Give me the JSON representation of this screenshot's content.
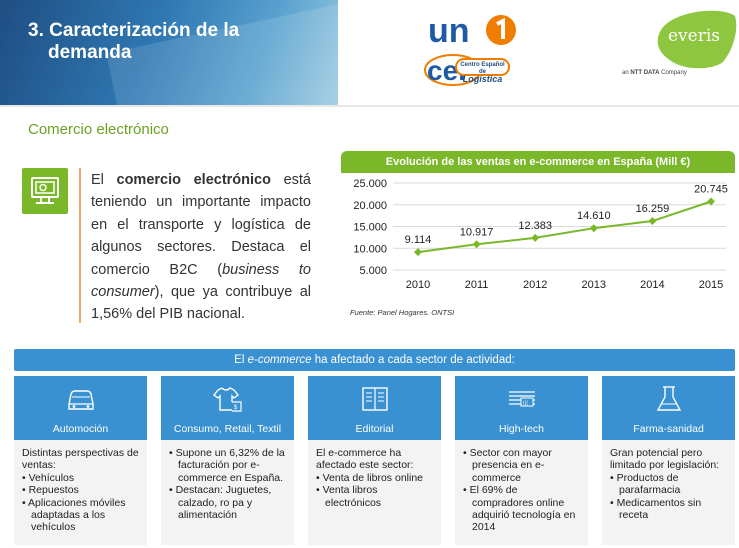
{
  "header": {
    "title_line1": "3. Caracterización de la",
    "title_line2": "demanda",
    "logo_uno_text": "un",
    "logo_cel_text": "cel",
    "logo_cel_small": "Centro Español de",
    "logo_cel_big": "Logística",
    "everis_brand": "everis",
    "everis_tagline_prefix": "an",
    "everis_tagline_bold": "NTT DATA",
    "everis_tagline_suffix": "Company"
  },
  "section": {
    "title": "Comercio electrónico"
  },
  "intro": {
    "part1": "El ",
    "bold": "comercio electrónico",
    "part2": " está teniendo un importante impacto en el transporte y logística de algunos sectores. Destaca el comercio B2C (",
    "italic": "business to consumer",
    "part3": "), que ya contribuye al 1,56% del PIB nacional."
  },
  "chart_data": {
    "type": "line",
    "title": "Evolución de las ventas en e-commerce en España (Mill €)",
    "categories": [
      "2010",
      "2011",
      "2012",
      "2013",
      "2014",
      "2015"
    ],
    "values": [
      9114,
      10917,
      12383,
      14610,
      16259,
      20745
    ],
    "value_labels": [
      "9.114",
      "10.917",
      "12.383",
      "14.610",
      "16.259",
      "20.745"
    ],
    "yticks": [
      5000,
      10000,
      15000,
      20000,
      25000
    ],
    "ytick_labels": [
      "5.000",
      "10.000",
      "15.000",
      "20.000",
      "25.000"
    ],
    "ylim": [
      5000,
      25000
    ],
    "xlabel": "",
    "ylabel": "",
    "color": "#7ab829",
    "source": "Fuente: Panel Hogares. ONTSI"
  },
  "sectors": {
    "banner_prefix": "El ",
    "banner_italic": "e-commerce",
    "banner_suffix": " ha afectado a cada sector de actividad:",
    "items": [
      {
        "label": "Automoción",
        "icon": "car-icon",
        "lines": [
          {
            "text": "Distintas perspectivas de ventas:",
            "bullet": false
          },
          {
            "text": "• Vehículos",
            "bullet": true
          },
          {
            "text": "• Repuestos",
            "bullet": true
          },
          {
            "text": "• Aplicaciones móviles adaptadas a los vehículos",
            "bullet": true
          }
        ]
      },
      {
        "label": "Consumo, Retail, Textil",
        "icon": "tshirt-icon",
        "lines": [
          {
            "text": "• Supone un 6,32% de la facturación por e-commerce en España.",
            "bullet": true
          },
          {
            "text": "• Destacan: Juguetes, calzado, ro pa y alimentación",
            "bullet": true
          }
        ]
      },
      {
        "label": "Editorial",
        "icon": "book-icon",
        "lines": [
          {
            "text": "El e-commerce ha afectado este sector:",
            "bullet": false
          },
          {
            "text": "• Venta de libros online",
            "bullet": true
          },
          {
            "text": "• Venta libros electrónicos",
            "bullet": true
          }
        ]
      },
      {
        "label": "High-tech",
        "icon": "keyboard-icon",
        "lines": [
          {
            "text": "• Sector con mayor presencia en e-commerce",
            "bullet": true
          },
          {
            "text": "• El 69% de compradores online adquirió tecnología en 2014",
            "bullet": true
          }
        ]
      },
      {
        "label": "Farma-sanidad",
        "icon": "flask-icon",
        "lines": [
          {
            "text": "Gran potencial pero limitado por legislación:",
            "bullet": false
          },
          {
            "text": "• Productos de parafarmacia",
            "bullet": true
          },
          {
            "text": "• Medicamentos sin receta",
            "bullet": true
          }
        ]
      }
    ]
  }
}
